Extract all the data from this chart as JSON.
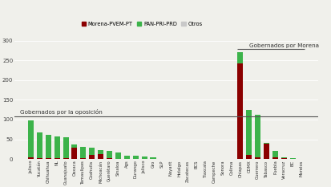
{
  "labels": [
    "Jalisco",
    "Yucatán",
    "Chihuahua",
    "NL",
    "Guanajuato",
    "Oaxaca",
    "Tamaulipas",
    "Coahuila",
    "Michoacán",
    "Querétaro",
    "Sinaloa",
    "Ags",
    "Durango",
    "Jalisco",
    "Gro",
    "SLP",
    "Nayarit",
    "Hidalgo",
    "Zacatecas",
    "BCS",
    "Tlaxcala",
    "Campeche",
    "Sonora",
    "Colima",
    "Chiapas",
    "CDMX",
    "Guerrero",
    "Tabasco",
    "Puebla",
    "Veracruz",
    "BC",
    "Morelos"
  ],
  "morena": [
    5,
    2,
    2,
    2,
    2,
    28,
    3,
    10,
    12,
    2,
    0,
    0,
    0,
    0,
    0,
    1,
    0,
    1,
    1,
    1,
    0,
    0,
    0,
    1,
    242,
    10,
    5,
    38,
    5,
    2,
    1,
    1
  ],
  "pan_pri_prd": [
    93,
    65,
    60,
    55,
    54,
    8,
    27,
    18,
    10,
    18,
    17,
    9,
    8,
    7,
    5,
    0,
    1,
    0,
    0,
    0,
    0,
    0,
    0,
    0,
    28,
    115,
    108,
    3,
    16,
    2,
    1,
    0
  ],
  "otros": [
    0,
    0,
    0,
    0,
    0,
    0,
    0,
    0,
    0,
    0,
    0,
    0,
    0,
    0,
    0,
    0,
    0,
    0,
    0,
    0,
    0,
    0,
    0,
    0,
    0,
    0,
    0,
    0,
    0,
    0,
    0,
    0
  ],
  "color_morena": "#8B0000",
  "color_pan": "#3cb34a",
  "color_otros": "#c8c8c8",
  "hline_y": 108,
  "hline_label_oposicion": "Gobernados por la oposición",
  "hline_label_morena": "Gobernados por Morena",
  "yticks": [
    0,
    50,
    100,
    150,
    200,
    250,
    300
  ],
  "ylim": [
    0,
    305
  ],
  "bg_color": "#f0f0eb"
}
